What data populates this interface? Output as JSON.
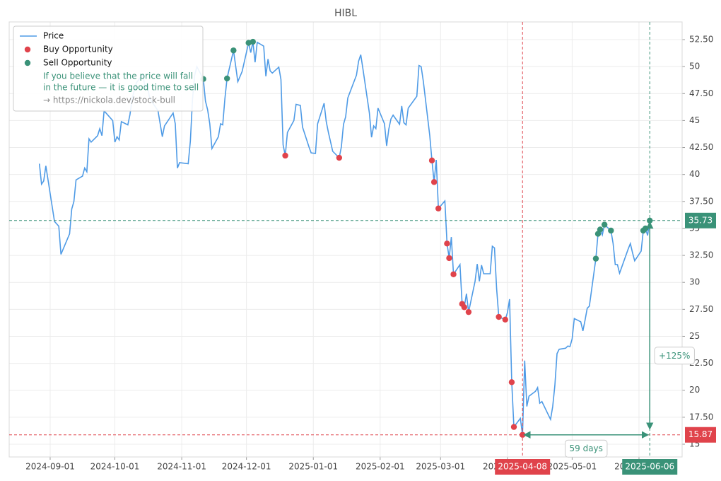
{
  "chart_data": {
    "type": "line",
    "title": "HIBL",
    "legend": "upper left",
    "legend_note": [
      "If you believe that the price will fall",
      "in the future — it is good time to sell"
    ],
    "legend_link": "→ https://nickola.dev/stock-bull",
    "grid": true,
    "xlim": [
      "2024-08-13",
      "2025-06-21"
    ],
    "xticks": [
      "2024-09-01",
      "2024-10-01",
      "2024-11-01",
      "2024-12-01",
      "2025-01-01",
      "2025-02-01",
      "2025-03-01",
      "2025-04-01",
      "2025-05-01",
      "2025-06-01"
    ],
    "ylim": [
      13.82,
      54.14
    ],
    "yticks": [
      15,
      {
        "value": 17.5,
        "label": "17.50"
      },
      20,
      {
        "value": 22.5,
        "label": "22.50"
      },
      25,
      {
        "value": 27.5,
        "label": "27.50"
      },
      30,
      {
        "value": 32.5,
        "label": "32.50"
      },
      35,
      {
        "value": 37.5,
        "label": "37.50"
      },
      40,
      {
        "value": 42.5,
        "label": "42.50"
      },
      45,
      {
        "value": 47.5,
        "label": "47.50"
      },
      50,
      {
        "value": 52.5,
        "label": "52.50"
      }
    ],
    "x": [
      "2024-08-27",
      "2024-08-28",
      "2024-08-29",
      "2024-08-30",
      "2024-09-03",
      "2024-09-05",
      "2024-09-06",
      "2024-09-10",
      "2024-09-11",
      "2024-09-12",
      "2024-09-13",
      "2024-09-16",
      "2024-09-17",
      "2024-09-18",
      "2024-09-19",
      "2024-09-20",
      "2024-09-23",
      "2024-09-24",
      "2024-09-25",
      "2024-09-26",
      "2024-09-30",
      "2024-10-01",
      "2024-10-02",
      "2024-10-03",
      "2024-10-04",
      "2024-10-07",
      "2024-10-08",
      "2024-10-09",
      "2024-10-10",
      "2024-10-11",
      "2024-10-14",
      "2024-10-15",
      "2024-10-16",
      "2024-10-17",
      "2024-10-18",
      "2024-10-21",
      "2024-10-23",
      "2024-10-24",
      "2024-10-28",
      "2024-10-29",
      "2024-10-30",
      "2024-10-31",
      "2024-11-04",
      "2024-11-05",
      "2024-11-06",
      "2024-11-07",
      "2024-11-08",
      "2024-11-11",
      "2024-11-12",
      "2024-11-13",
      "2024-11-14",
      "2024-11-15",
      "2024-11-18",
      "2024-11-19",
      "2024-11-20",
      "2024-11-21",
      "2024-11-22",
      "2024-11-25",
      "2024-11-27",
      "2024-11-29",
      "2024-12-02",
      "2024-12-03",
      "2024-12-04",
      "2024-12-05",
      "2024-12-06",
      "2024-12-09",
      "2024-12-10",
      "2024-12-11",
      "2024-12-12",
      "2024-12-13",
      "2024-12-16",
      "2024-12-17",
      "2024-12-18",
      "2024-12-19",
      "2024-12-20",
      "2024-12-23",
      "2024-12-24",
      "2024-12-26",
      "2024-12-27",
      "2024-12-30",
      "2024-12-31",
      "2025-01-02",
      "2025-01-03",
      "2025-01-06",
      "2025-01-07",
      "2025-01-08",
      "2025-01-10",
      "2025-01-13",
      "2025-01-14",
      "2025-01-15",
      "2025-01-16",
      "2025-01-17",
      "2025-01-21",
      "2025-01-22",
      "2025-01-23",
      "2025-01-24",
      "2025-01-27",
      "2025-01-28",
      "2025-01-29",
      "2025-01-30",
      "2025-01-31",
      "2025-02-03",
      "2025-02-04",
      "2025-02-05",
      "2025-02-06",
      "2025-02-07",
      "2025-02-10",
      "2025-02-11",
      "2025-02-12",
      "2025-02-13",
      "2025-02-14",
      "2025-02-18",
      "2025-02-19",
      "2025-02-20",
      "2025-02-21",
      "2025-02-24",
      "2025-02-25",
      "2025-02-26",
      "2025-02-27",
      "2025-02-28",
      "2025-03-03",
      "2025-03-04",
      "2025-03-05",
      "2025-03-06",
      "2025-03-07",
      "2025-03-10",
      "2025-03-11",
      "2025-03-12",
      "2025-03-13",
      "2025-03-14",
      "2025-03-17",
      "2025-03-18",
      "2025-03-19",
      "2025-03-20",
      "2025-03-21",
      "2025-03-24",
      "2025-03-25",
      "2025-03-26",
      "2025-03-27",
      "2025-03-28",
      "2025-03-31",
      "2025-04-01",
      "2025-04-02",
      "2025-04-03",
      "2025-04-04",
      "2025-04-07",
      "2025-04-08",
      "2025-04-09",
      "2025-04-10",
      "2025-04-11",
      "2025-04-14",
      "2025-04-15",
      "2025-04-16",
      "2025-04-17",
      "2025-04-21",
      "2025-04-22",
      "2025-04-23",
      "2025-04-24",
      "2025-04-25",
      "2025-04-28",
      "2025-04-29",
      "2025-04-30",
      "2025-05-01",
      "2025-05-02",
      "2025-05-05",
      "2025-05-06",
      "2025-05-07",
      "2025-05-08",
      "2025-05-09",
      "2025-05-12",
      "2025-05-13",
      "2025-05-14",
      "2025-05-15",
      "2025-05-16",
      "2025-05-19",
      "2025-05-20",
      "2025-05-21",
      "2025-05-22",
      "2025-05-23",
      "2025-05-27",
      "2025-05-28",
      "2025-05-29",
      "2025-05-30",
      "2025-06-02",
      "2025-06-03",
      "2025-06-04",
      "2025-06-05",
      "2025-06-06"
    ],
    "series": [
      {
        "name": "Price",
        "color": "#4f9be6",
        "type": "line",
        "values": [
          41.0,
          39.1,
          39.4,
          40.8,
          35.65,
          35.2,
          32.6,
          34.5,
          36.8,
          37.5,
          39.5,
          39.85,
          40.6,
          40.25,
          43.3,
          43.0,
          43.6,
          44.25,
          43.6,
          45.9,
          45.0,
          43.0,
          43.5,
          43.2,
          44.9,
          44.6,
          45.55,
          47.0,
          47.8,
          48.5,
          49.3,
          48.0,
          48.4,
          47.2,
          46.8,
          45.9,
          43.5,
          44.5,
          45.7,
          44.7,
          40.6,
          41.1,
          41.0,
          43.1,
          47.0,
          49.2,
          50.0,
          48.85,
          46.8,
          46.0,
          44.7,
          42.4,
          43.5,
          44.7,
          44.6,
          47.0,
          48.9,
          51.5,
          48.6,
          49.55,
          52.2,
          51.3,
          52.3,
          50.4,
          52.25,
          51.9,
          49.1,
          50.7,
          49.6,
          49.4,
          49.95,
          48.8,
          42.75,
          41.75,
          43.9,
          45.0,
          46.5,
          46.4,
          44.4,
          42.55,
          42.0,
          41.95,
          44.7,
          46.6,
          44.9,
          43.9,
          42.15,
          41.55,
          42.55,
          44.65,
          45.35,
          47.1,
          49.2,
          50.5,
          51.1,
          49.8,
          45.7,
          43.45,
          44.5,
          44.25,
          46.15,
          44.7,
          42.65,
          44.2,
          45.15,
          45.5,
          44.65,
          46.35,
          44.8,
          44.6,
          46.15,
          47.25,
          50.1,
          50.0,
          48.65,
          43.6,
          41.3,
          39.3,
          41.35,
          36.85,
          37.55,
          33.6,
          32.25,
          34.2,
          30.75,
          31.65,
          28.0,
          27.7,
          28.95,
          27.25,
          30.1,
          31.7,
          30.1,
          31.6,
          30.8,
          30.8,
          33.35,
          33.2,
          29.4,
          26.8,
          26.55,
          27.2,
          28.45,
          20.75,
          16.6,
          17.4,
          15.87,
          22.75,
          18.5,
          19.45,
          19.9,
          20.25,
          18.8,
          18.95,
          17.3,
          18.5,
          20.45,
          23.4,
          23.8,
          23.9,
          24.1,
          24.05,
          24.75,
          26.65,
          26.35,
          25.5,
          26.5,
          27.6,
          27.8,
          32.2,
          34.5,
          34.9,
          34.4,
          35.35,
          34.8,
          33.6,
          31.65,
          31.65,
          30.85,
          33.1,
          33.6,
          32.75,
          32.0,
          32.9,
          34.8,
          35.0,
          34.35,
          35.73
        ]
      },
      {
        "name": "Buy Opportunity",
        "color": "#e0434b",
        "type": "scatter",
        "x": [
          "2024-12-19",
          "2025-01-13",
          "2025-02-25",
          "2025-02-26",
          "2025-02-28",
          "2025-03-04",
          "2025-03-05",
          "2025-03-07",
          "2025-03-11",
          "2025-03-12",
          "2025-03-14",
          "2025-03-28",
          "2025-03-31",
          "2025-04-03",
          "2025-04-04",
          "2025-04-08"
        ],
        "values": [
          41.75,
          41.55,
          41.3,
          39.3,
          36.85,
          33.6,
          32.25,
          30.75,
          28.0,
          27.7,
          27.25,
          26.8,
          26.55,
          20.75,
          16.6,
          15.87
        ]
      },
      {
        "name": "Sell Opportunity",
        "color": "#3a9278",
        "type": "scatter",
        "x": [
          "2024-11-11",
          "2024-11-22",
          "2024-11-25",
          "2024-12-02",
          "2024-12-04",
          "2025-05-12",
          "2025-05-13",
          "2025-05-14",
          "2025-05-16",
          "2025-05-19",
          "2025-06-03",
          "2025-06-04",
          "2025-06-06"
        ],
        "values": [
          48.85,
          48.9,
          51.5,
          52.2,
          52.3,
          32.2,
          34.5,
          34.9,
          35.35,
          34.8,
          34.8,
          35.0,
          35.73
        ]
      }
    ],
    "hlines": [
      {
        "value": 35.73,
        "color": "#3a9278"
      },
      {
        "value": 15.87,
        "color": "#e0434b"
      }
    ],
    "vlines": [
      {
        "x": "2025-04-08",
        "color": "#e0434b"
      },
      {
        "x": "2025-06-06",
        "color": "#3a9278"
      }
    ],
    "annotations": [
      "+125%",
      "59 days"
    ]
  }
}
